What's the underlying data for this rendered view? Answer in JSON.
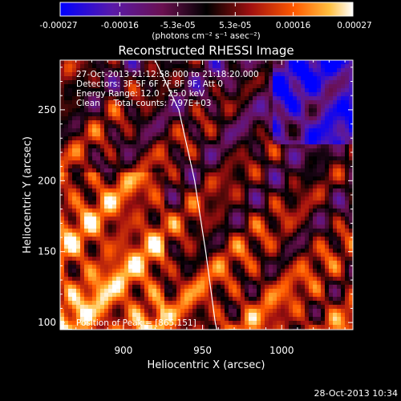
{
  "chart_data": {
    "type": "heatmap",
    "title": "Reconstructed RHESSI Image",
    "xlabel": "Heliocentric X (arcsec)",
    "ylabel": "Heliocentric Y (arcsec)",
    "xlim": [
      860,
      1045
    ],
    "ylim": [
      95,
      285
    ],
    "x_ticks": [
      "900",
      "950",
      "1000"
    ],
    "x_tick_values": [
      900,
      950,
      1000
    ],
    "y_ticks": [
      "100",
      "150",
      "200",
      "250"
    ],
    "y_tick_values": [
      100,
      150,
      200,
      250
    ],
    "colorbar": {
      "ticks": [
        "-0.00027",
        "-0.00016",
        "-5.3e-05",
        "5.3e-05",
        "0.00016",
        "0.00027"
      ],
      "tick_values": [
        -0.00027,
        -0.00016,
        -5.3e-05,
        5.3e-05,
        0.00016,
        0.00027
      ],
      "range": [
        -0.00027,
        0.00027
      ],
      "unit_label": "(photons cm⁻² s⁻¹ asec⁻²)",
      "colormap": "blue-purple-red-orange-yellow-white"
    },
    "annotations": {
      "time_range": "27-Oct-2013 21:12:58.000 to 21:18:20.000",
      "detectors": "Detectors: 3F 5F 6F 7F 8F 9F, Att 0",
      "energy": "Energy Range: 12.0 - 25.0 keV",
      "clean": "Clean     Total counts: 7.97E+03",
      "peak": "Position of Peak = [865,151]"
    },
    "limb_curve": {
      "description": "solar limb",
      "points": [
        [
          920,
          285
        ],
        [
          935,
          250
        ],
        [
          945,
          200
        ],
        [
          952,
          150
        ],
        [
          958,
          100
        ],
        [
          959,
          95
        ]
      ]
    },
    "peak_position": [
      865,
      151
    ]
  },
  "footer": {
    "timestamp": "28-Oct-2013 10:34"
  }
}
